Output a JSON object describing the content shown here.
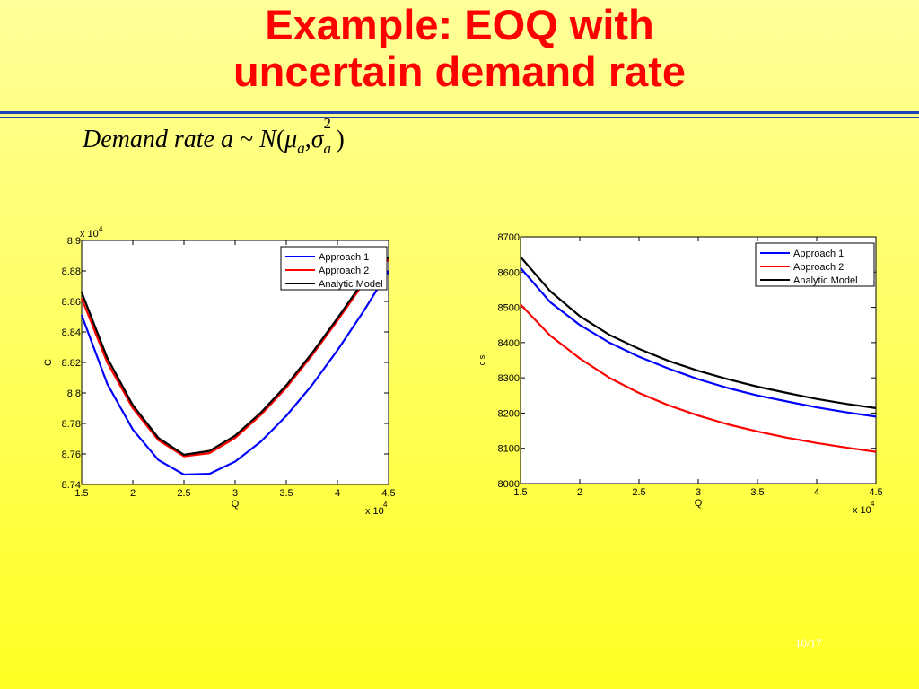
{
  "slide": {
    "title_line1": "Example: EOQ with",
    "title_line2": "uncertain demand rate",
    "formula": {
      "lhs": "Demand rate a",
      "tilde": "~",
      "dist": "N",
      "open": "(",
      "mu": "μ",
      "mu_sub": "a",
      "comma": ",",
      "sigma": "σ",
      "sigma_sup": "2",
      "sigma_sub": "a",
      "close": ")"
    },
    "page_number": "10/17",
    "colors": {
      "title": "#ff0000",
      "rule": "#1a3fbf",
      "background": "#ffff66"
    }
  },
  "chart_data": [
    {
      "type": "line",
      "xlabel": "Q",
      "ylabel": "C",
      "x_multiplier": "x 10",
      "x_multiplier_exp": "4",
      "y_multiplier": "x 10",
      "y_multiplier_exp": "4",
      "xlim": [
        1.5,
        4.5
      ],
      "ylim": [
        8.74,
        8.9
      ],
      "xticks": [
        1.5,
        2,
        2.5,
        3,
        3.5,
        4,
        4.5
      ],
      "xtick_labels": [
        "1.5",
        "2",
        "2.5",
        "3",
        "3.5",
        "4",
        "4.5"
      ],
      "yticks": [
        8.74,
        8.76,
        8.78,
        8.8,
        8.82,
        8.84,
        8.86,
        8.88,
        8.9
      ],
      "ytick_labels": [
        "8.74",
        "8.76",
        "8.78",
        "8.8",
        "8.82",
        "8.84",
        "8.86",
        "8.88",
        "8.9"
      ],
      "grid": false,
      "legend": "top-right",
      "series": [
        {
          "name": "Approach 1",
          "color": "#0000ff",
          "x": [
            1.5,
            1.75,
            2.0,
            2.25,
            2.5,
            2.75,
            3.0,
            3.25,
            3.5,
            3.75,
            4.0,
            4.25,
            4.5
          ],
          "y": [
            8.851,
            8.806,
            8.776,
            8.756,
            8.7465,
            8.747,
            8.755,
            8.768,
            8.785,
            8.805,
            8.828,
            8.853,
            8.88
          ]
        },
        {
          "name": "Approach 2",
          "color": "#ff0000",
          "x": [
            1.5,
            1.75,
            2.0,
            2.25,
            2.5,
            2.75,
            3.0,
            3.25,
            3.5,
            3.75,
            4.0,
            4.25,
            4.5
          ],
          "y": [
            8.862,
            8.82,
            8.79,
            8.769,
            8.7585,
            8.7605,
            8.7705,
            8.7855,
            8.8035,
            8.8245,
            8.8475,
            8.8715,
            8.8875
          ]
        },
        {
          "name": "Analytic Model",
          "color": "#000000",
          "x": [
            1.5,
            1.75,
            2.0,
            2.25,
            2.5,
            2.75,
            3.0,
            3.25,
            3.5,
            3.75,
            4.0,
            4.25,
            4.5
          ],
          "y": [
            8.866,
            8.823,
            8.792,
            8.7705,
            8.7595,
            8.762,
            8.772,
            8.787,
            8.805,
            8.826,
            8.849,
            8.873,
            8.889
          ]
        }
      ]
    },
    {
      "type": "line",
      "xlabel": "Q",
      "ylabel": "c s",
      "x_multiplier": "x 10",
      "x_multiplier_exp": "4",
      "xlim": [
        1.5,
        4.5
      ],
      "ylim": [
        8000,
        8700
      ],
      "xticks": [
        1.5,
        2,
        2.5,
        3,
        3.5,
        4,
        4.5
      ],
      "xtick_labels": [
        "1.5",
        "2",
        "2.5",
        "3",
        "3.5",
        "4",
        "4.5"
      ],
      "yticks": [
        8000,
        8100,
        8200,
        8300,
        8400,
        8500,
        8600,
        8700
      ],
      "ytick_labels": [
        "8000",
        "8100",
        "8200",
        "8300",
        "8400",
        "8500",
        "8600",
        "8700"
      ],
      "grid": false,
      "legend": "top-right",
      "series": [
        {
          "name": "Approach 1",
          "color": "#0000ff",
          "x": [
            1.5,
            1.75,
            2.0,
            2.25,
            2.5,
            2.75,
            3.0,
            3.25,
            3.5,
            3.75,
            4.0,
            4.25,
            4.5
          ],
          "y": [
            8612,
            8515,
            8450,
            8400,
            8360,
            8326,
            8296,
            8271,
            8250,
            8233,
            8216,
            8202,
            8190
          ]
        },
        {
          "name": "Approach 2",
          "color": "#ff0000",
          "x": [
            1.5,
            1.75,
            2.0,
            2.25,
            2.5,
            2.75,
            3.0,
            3.25,
            3.5,
            3.75,
            4.0,
            4.25,
            4.5
          ],
          "y": [
            8508,
            8420,
            8355,
            8300,
            8257,
            8222,
            8193,
            8168,
            8148,
            8130,
            8115,
            8102,
            8090
          ]
        },
        {
          "name": "Analytic Model",
          "color": "#000000",
          "x": [
            1.5,
            1.75,
            2.0,
            2.25,
            2.5,
            2.75,
            3.0,
            3.25,
            3.5,
            3.75,
            4.0,
            4.25,
            4.5
          ],
          "y": [
            8643,
            8546,
            8475,
            8422,
            8382,
            8348,
            8320,
            8296,
            8275,
            8257,
            8240,
            8226,
            8214
          ]
        }
      ]
    }
  ]
}
